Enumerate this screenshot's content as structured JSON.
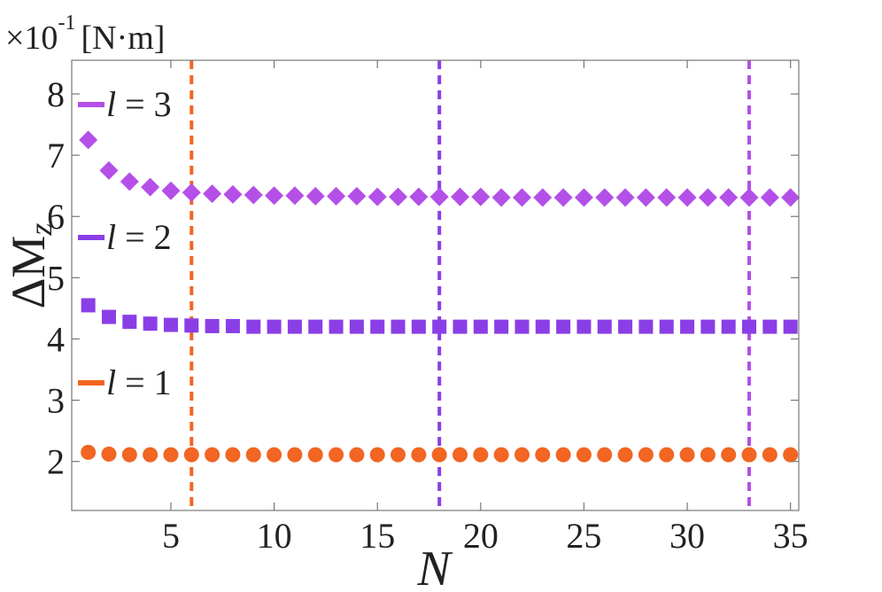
{
  "chart_data": {
    "type": "scatter",
    "unit_label": "×10",
    "unit_exponent": "-1",
    "unit_suffix": "[N·m]",
    "ylabel": "ΔM",
    "ylabel_sub": "z",
    "xlabel": "N",
    "xlim": [
      0.2,
      35.4
    ],
    "ylim": [
      1.2,
      8.55
    ],
    "x_ticks": [
      5,
      10,
      15,
      20,
      25,
      30,
      35
    ],
    "y_ticks": [
      2,
      3,
      4,
      5,
      6,
      7,
      8
    ],
    "x_tick_labels": [
      "5",
      "10",
      "15",
      "20",
      "25",
      "30",
      "35"
    ],
    "y_tick_labels": [
      "2",
      "3",
      "4",
      "5",
      "6",
      "7",
      "8"
    ],
    "vlines": [
      {
        "x": 6,
        "color": "#f26522"
      },
      {
        "x": 18,
        "color": "#8a3fe6"
      },
      {
        "x": 33,
        "color": "#b44fe8"
      }
    ],
    "series": [
      {
        "name": "l = 1",
        "legend_var": "l",
        "legend_eq": " = 1",
        "marker": "circle",
        "color": "#f26522",
        "x": [
          1,
          2,
          3,
          4,
          5,
          6,
          7,
          8,
          9,
          10,
          11,
          12,
          13,
          14,
          15,
          16,
          17,
          18,
          19,
          20,
          21,
          22,
          23,
          24,
          25,
          26,
          27,
          28,
          29,
          30,
          31,
          32,
          33,
          34,
          35
        ],
        "values": [
          2.15,
          2.12,
          2.11,
          2.11,
          2.11,
          2.11,
          2.11,
          2.11,
          2.11,
          2.11,
          2.11,
          2.11,
          2.11,
          2.11,
          2.11,
          2.11,
          2.11,
          2.11,
          2.11,
          2.11,
          2.11,
          2.11,
          2.11,
          2.11,
          2.11,
          2.11,
          2.11,
          2.11,
          2.11,
          2.11,
          2.11,
          2.11,
          2.11,
          2.11,
          2.11
        ]
      },
      {
        "name": "l = 2",
        "legend_var": "l",
        "legend_eq": " = 2",
        "marker": "square",
        "color": "#8a3fe6",
        "x": [
          1,
          2,
          3,
          4,
          5,
          6,
          7,
          8,
          9,
          10,
          11,
          12,
          13,
          14,
          15,
          16,
          17,
          18,
          19,
          20,
          21,
          22,
          23,
          24,
          25,
          26,
          27,
          28,
          29,
          30,
          31,
          32,
          33,
          34,
          35
        ],
        "values": [
          4.55,
          4.36,
          4.28,
          4.25,
          4.23,
          4.22,
          4.21,
          4.21,
          4.2,
          4.2,
          4.2,
          4.2,
          4.2,
          4.2,
          4.2,
          4.2,
          4.2,
          4.2,
          4.2,
          4.2,
          4.2,
          4.2,
          4.2,
          4.2,
          4.2,
          4.2,
          4.2,
          4.2,
          4.2,
          4.2,
          4.2,
          4.2,
          4.2,
          4.2,
          4.2
        ]
      },
      {
        "name": "l = 3",
        "legend_var": "l",
        "legend_eq": " = 3",
        "marker": "diamond",
        "color": "#b44fe8",
        "x": [
          1,
          2,
          3,
          4,
          5,
          6,
          7,
          8,
          9,
          10,
          11,
          12,
          13,
          14,
          15,
          16,
          17,
          18,
          19,
          20,
          21,
          22,
          23,
          24,
          25,
          26,
          27,
          28,
          29,
          30,
          31,
          32,
          33,
          34,
          35
        ],
        "values": [
          7.25,
          6.75,
          6.57,
          6.48,
          6.42,
          6.39,
          6.37,
          6.36,
          6.35,
          6.34,
          6.34,
          6.33,
          6.33,
          6.33,
          6.32,
          6.32,
          6.32,
          6.32,
          6.32,
          6.32,
          6.31,
          6.31,
          6.31,
          6.31,
          6.31,
          6.31,
          6.31,
          6.31,
          6.31,
          6.31,
          6.31,
          6.31,
          6.31,
          6.31,
          6.31
        ]
      }
    ]
  }
}
